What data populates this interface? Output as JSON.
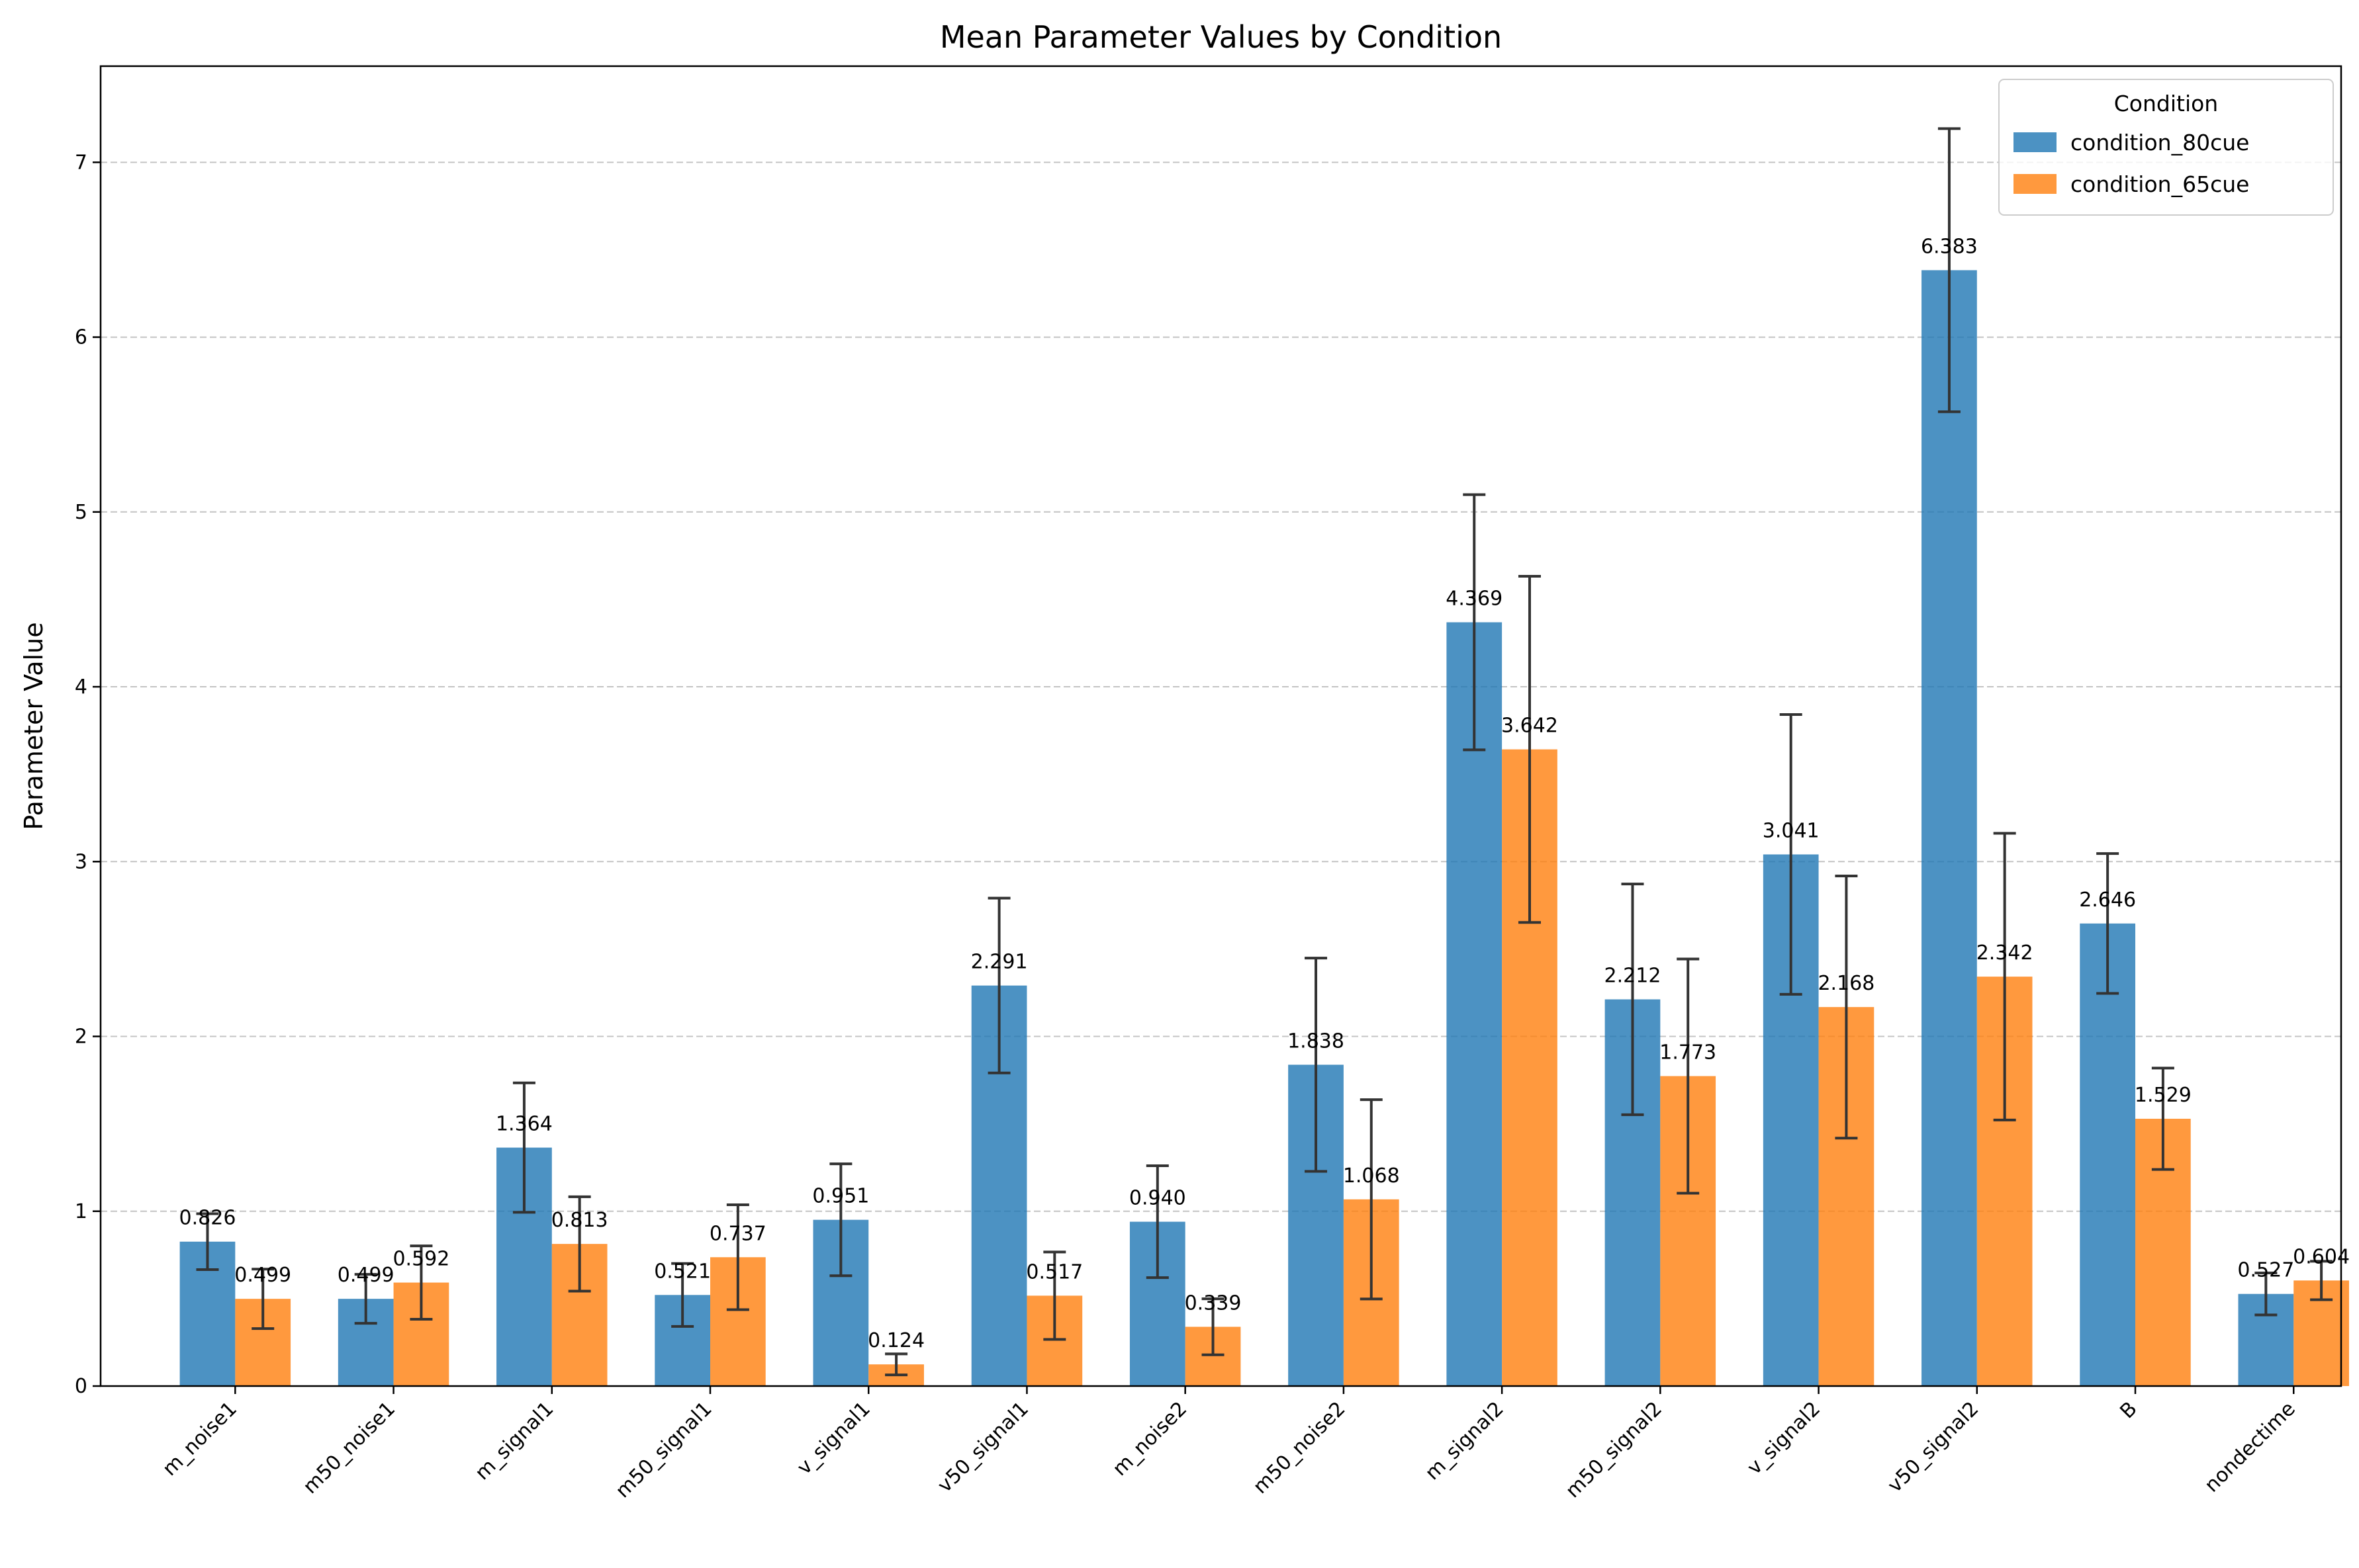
{
  "chart_data": {
    "type": "bar",
    "title": "Mean Parameter Values by Condition",
    "xlabel": "",
    "ylabel": "Parameter Value",
    "ylim": [
      0,
      7.55
    ],
    "yticks": [
      0,
      1,
      2,
      3,
      4,
      5,
      6,
      7
    ],
    "grid": "y-dashed",
    "legend_title": "Condition",
    "legend_position": "top-right",
    "categories": [
      "m_noise1",
      "m50_noise1",
      "m_signal1",
      "m50_signal1",
      "v_signal1",
      "v50_signal1",
      "m_noise2",
      "m50_noise2",
      "m_signal2",
      "m50_signal2",
      "v_signal2",
      "v50_signal2",
      "B",
      "nondectime"
    ],
    "series": [
      {
        "name": "condition_80cue",
        "color": "#1f77b4",
        "values": [
          0.826,
          0.499,
          1.364,
          0.521,
          0.951,
          2.291,
          0.94,
          1.838,
          4.369,
          2.212,
          3.041,
          6.383,
          2.646,
          0.527
        ],
        "labels": [
          "0.826",
          "0.499",
          "1.364",
          "0.521",
          "0.951",
          "2.291",
          "0.940",
          "1.838",
          "4.369",
          "2.212",
          "3.041",
          "6.383",
          "2.646",
          "0.527"
        ],
        "errors": [
          0.16,
          0.14,
          0.37,
          0.18,
          0.32,
          0.5,
          0.32,
          0.61,
          0.73,
          0.66,
          0.8,
          0.81,
          0.4,
          0.12
        ]
      },
      {
        "name": "condition_65cue",
        "color": "#ff7f0e",
        "values": [
          0.499,
          0.592,
          0.813,
          0.737,
          0.124,
          0.517,
          0.339,
          1.068,
          3.642,
          1.773,
          2.168,
          2.342,
          1.529,
          0.604
        ],
        "labels": [
          "0.499",
          "0.592",
          "0.813",
          "0.737",
          "0.124",
          "0.517",
          "0.339",
          "1.068",
          "3.642",
          "1.773",
          "2.168",
          "2.342",
          "1.529",
          "0.604"
        ],
        "errors": [
          0.17,
          0.21,
          0.27,
          0.3,
          0.06,
          0.25,
          0.16,
          0.57,
          0.99,
          0.67,
          0.75,
          0.82,
          0.29,
          0.11
        ]
      }
    ]
  }
}
